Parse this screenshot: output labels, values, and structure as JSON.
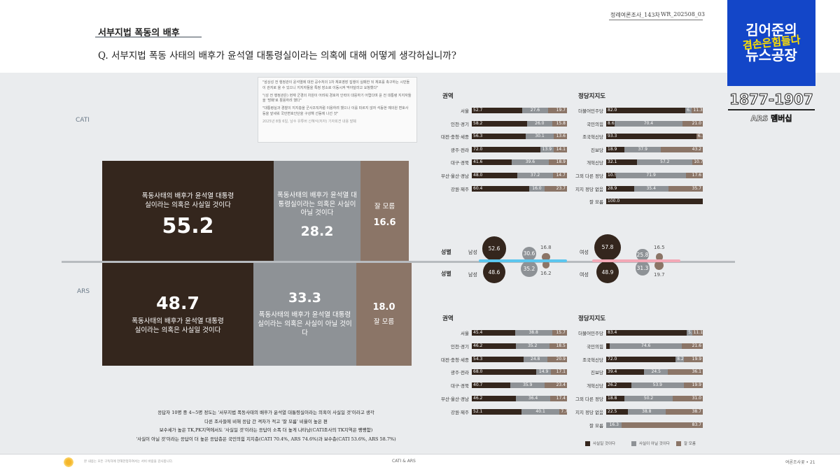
{
  "header": {
    "topic": "서부지법 폭동의 배후",
    "question": "Q. 서부지법 폭동 사태의 배후가 윤석열 대통령실이라는 의혹에 대해 어떻게 생각하십니까?",
    "issue_title": "정례여론조사_143차",
    "issue_code": "WR_202508_03"
  },
  "quote": {
    "lines": [
      "\"삼상성 전 행정관이 윤석열에 대한 공수처의 1차 체포영장 집행이 실패한 뒤 체포를 촉구하는 시민들이 관저로 올 수 있으니 지지자들을 특정 장소로 이동시켜 막아달라고 요청했다\"",
      "\"(성 전 행정관은) 현재 군경의 차원이 어려워 경호처 인력이 대응하기 어렵다며 윤 전 대통령 지지자들을 '방패'로 활용하려 했다\"",
      "\"대통령실과 경찰이 지지층을 군사조직처럼 이용하려 했으나 이를 따르지 않자 석동현 예의원 변호사 등을 앞세워 국민변호인단을 구성해 선동에 나선 것\""
    ],
    "source": "2025년 8월 6일, 남수 유튜버 신혜식(저자) 기자회견 내용 발췌"
  },
  "labels": {
    "cati": "CATI",
    "ars": "ARS",
    "region": "권역",
    "party": "정당지지도",
    "sex": "성별",
    "male": "남성",
    "female": "여성"
  },
  "colors": {
    "believe": "#34261d",
    "not_believe": "#8e9296",
    "unknown": "#8b7567"
  },
  "chart_data": [
    {
      "type": "bar",
      "name": "CATI 전체",
      "categories": [
        "폭동사태의 배후가 윤석열 대통령실이라는 의혹은 사실일 것이다",
        "폭동사태의 배후가 윤석열 대통령실이라는 의혹은 사실이 아닐 것이다",
        "잘 모름"
      ],
      "values": [
        55.2,
        28.2,
        16.6
      ],
      "value_labels": [
        "55.2",
        "28.2",
        "16.6"
      ]
    },
    {
      "type": "bar",
      "name": "ARS 전체",
      "categories": [
        "폭동사태의 배후가 윤석열 대통령실이라는 의혹은 사실일 것이다",
        "폭동사태의 배후가 윤석열 대통령실이라는 의혹은 사실이 아닐 것이다",
        "잘 모름"
      ],
      "values": [
        48.7,
        33.3,
        18.0
      ],
      "value_labels": [
        "48.7",
        "33.3",
        "18.0"
      ]
    },
    {
      "type": "bar",
      "name": "CATI 권역",
      "categories": [
        "서울",
        "인천·경기",
        "대전·충청·세종",
        "광주·전라",
        "대구·경북",
        "부산·울산·경남",
        "강원·제주"
      ],
      "series": [
        {
          "values": [
            52.7,
            58.2,
            56.3,
            72.0,
            41.6,
            48.0,
            60.4
          ],
          "labels": [
            "52.7",
            "58.2",
            "56.3",
            "72.0",
            "41.6",
            "48.0",
            "60.4"
          ]
        },
        {
          "values": [
            27.6,
            26.0,
            30.1,
            13.9,
            39.6,
            37.2,
            16.0
          ],
          "labels": [
            "27.6",
            "26.0",
            "30.1",
            "13.9",
            "39.6",
            "37.2",
            "16.0"
          ]
        },
        {
          "values": [
            19.7,
            15.8,
            13.6,
            14.1,
            18.9,
            14.7,
            23.7
          ],
          "labels": [
            "19.7",
            "15.8",
            "13.6",
            "14.1",
            "18.9",
            "14.7",
            "23.7"
          ]
        }
      ]
    },
    {
      "type": "bar",
      "name": "CATI 정당지지도",
      "categories": [
        "더불어민주당",
        "국민의힘",
        "조국혁신당",
        "진보당",
        "개혁신당",
        "그외 다른 정당",
        "지지 정당 없음",
        "잘 모름"
      ],
      "series": [
        {
          "values": [
            82.0,
            8.6,
            93.3,
            18.9,
            32.1,
            10.5,
            28.9,
            100.0
          ],
          "labels": [
            "82.0",
            "8.6",
            "93.3",
            "18.9",
            "32.1",
            "10.5",
            "28.9",
            "100.0"
          ]
        },
        {
          "values": [
            6.7,
            70.4,
            0,
            37.9,
            57.2,
            71.9,
            35.4,
            0
          ],
          "labels": [
            "6.7",
            "70.4",
            "",
            "37.9",
            "57.2",
            "71.9",
            "35.4",
            ""
          ]
        },
        {
          "values": [
            11.3,
            21.0,
            6.7,
            43.2,
            10.7,
            17.6,
            35.7,
            0
          ],
          "labels": [
            "11.3",
            "21.0",
            "6.7",
            "43.2",
            "10.7",
            "17.6",
            "35.7",
            ""
          ]
        }
      ]
    },
    {
      "type": "bubble",
      "name": "성별",
      "groups": [
        {
          "label": "남성",
          "cati": [
            52.6,
            30.6,
            16.8
          ],
          "ars": [
            48.6,
            35.2,
            16.2
          ]
        },
        {
          "label": "여성",
          "cati": [
            57.8,
            25.8,
            16.5
          ],
          "ars": [
            48.9,
            31.3,
            19.7
          ]
        }
      ]
    },
    {
      "type": "bar",
      "name": "ARS 권역",
      "categories": [
        "서울",
        "인천·경기",
        "대전·충청·세종",
        "광주·전라",
        "대구·경북",
        "부산·울산·경남",
        "강원·제주"
      ],
      "series": [
        {
          "values": [
            45.4,
            46.2,
            54.3,
            68.0,
            40.7,
            46.2,
            52.1
          ],
          "labels": [
            "45.4",
            "46.2",
            "54.3",
            "68.0",
            "40.7",
            "46.2",
            "52.1"
          ]
        },
        {
          "values": [
            38.8,
            35.2,
            24.8,
            14.9,
            35.9,
            36.4,
            40.1
          ],
          "labels": [
            "38.8",
            "35.2",
            "24.8",
            "14.9",
            "35.9",
            "36.4",
            "40.1"
          ]
        },
        {
          "values": [
            15.7,
            18.5,
            20.9,
            17.1,
            23.4,
            17.4,
            7.7
          ],
          "labels": [
            "15.7",
            "18.5",
            "20.9",
            "17.1",
            "23.4",
            "17.4",
            "7.7"
          ]
        }
      ]
    },
    {
      "type": "bar",
      "name": "ARS 정당지지도",
      "categories": [
        "더불어민주당",
        "국민의힘",
        "조국혁신당",
        "진보당",
        "개혁신당",
        "그외 다른 정당",
        "지지 정당 없음",
        "잘 모름"
      ],
      "series": [
        {
          "values": [
            83.4,
            3.8,
            72.0,
            39.4,
            26.2,
            18.8,
            22.5,
            0
          ],
          "labels": [
            "83.4",
            "",
            "72.0",
            "39.4",
            "26.2",
            "18.8",
            "22.5",
            ""
          ]
        },
        {
          "values": [
            5.5,
            74.6,
            8.2,
            24.5,
            53.9,
            50.2,
            38.8,
            16.3
          ],
          "labels": [
            "5.5",
            "74.6",
            "8.2",
            "24.5",
            "53.9",
            "50.2",
            "38.8",
            "16.3"
          ]
        },
        {
          "values": [
            11.1,
            21.6,
            19.9,
            36.1,
            19.9,
            31.0,
            38.7,
            83.7
          ],
          "labels": [
            "11.1",
            "21.6",
            "19.9",
            "36.1",
            "19.9",
            "31.0",
            "38.7",
            "83.7"
          ]
        }
      ]
    }
  ],
  "legend": [
    "사실일 것이다",
    "사실이 아닐 것이다",
    "잘 모름"
  ],
  "notes": [
    "응답자 10명 중 4~5명 정도는 '서부지법 폭동사태의 배후가 윤석열 대통령실이라는 의혹이 사실일 것'이라고 생각",
    "다른 조사들에 비해 응답 간 격차가 적고 '잘 모름' 비율이 높은 편",
    "보수세가 높은 TK,PK지역에서도 '사실일 것'이라는 응답이 소폭 더 높게 나타남(CATI조사의 TK지역은 팽팽함)",
    "'사실이 아닐 것'이라는 응답이 더 높은 응답층은 국민의힘 지지층(CATI 70.4%, ARS 74.6%)과 보수층(CATI 53.6%, ARS 58.7%)"
  ],
  "footer": {
    "note": "본 내용는 모든 구독자에 한해한정하여서는 서비 바람을 감사합니다.",
    "center": "CATI & ARS",
    "page": "여론조사꽃 • 21"
  },
  "overlay": {
    "logo_line1": "김어준의",
    "logo_line2": "겸손은힘들다",
    "logo_line3": "뉴스공장",
    "episode": "1877-1907",
    "episode_sub": "ARS 멤버십"
  }
}
